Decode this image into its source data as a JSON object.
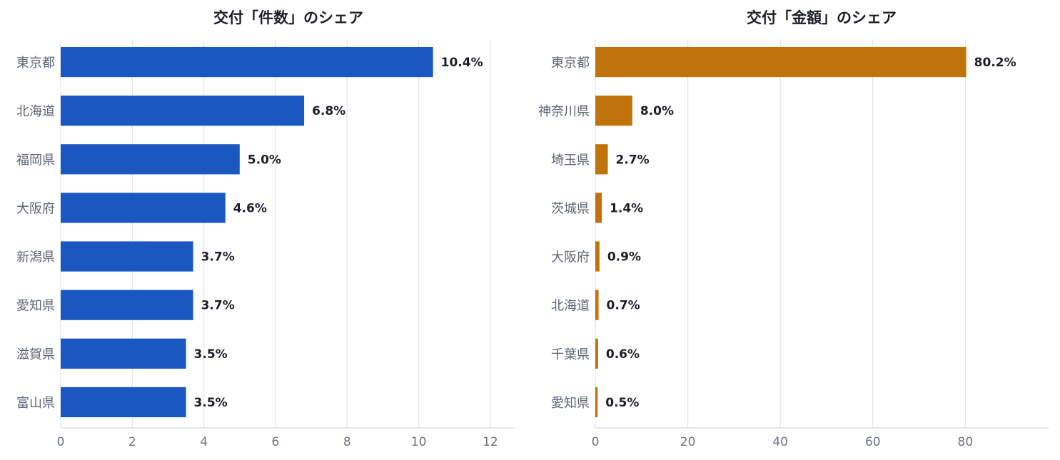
{
  "chart_data": [
    {
      "type": "bar",
      "orientation": "horizontal",
      "title": "交付「件数」のシェア",
      "categories": [
        "東京都",
        "北海道",
        "福岡県",
        "大阪府",
        "新潟県",
        "愛知県",
        "滋賀県",
        "富山県"
      ],
      "values": [
        10.4,
        6.8,
        5.0,
        4.6,
        3.7,
        3.7,
        3.5,
        3.5
      ],
      "value_labels": [
        "10.4%",
        "6.8%",
        "5.0%",
        "4.6%",
        "3.7%",
        "3.7%",
        "3.5%",
        "3.5%"
      ],
      "xlim": [
        0,
        12.7
      ],
      "xticks": [
        0,
        2,
        4,
        6,
        8,
        10,
        12
      ],
      "xlabel": "",
      "ylabel": "",
      "grid": true,
      "legend": "none",
      "color": "#1a57c0"
    },
    {
      "type": "bar",
      "orientation": "horizontal",
      "title": "交付「金額」のシェア",
      "categories": [
        "東京都",
        "神奈川県",
        "埼玉県",
        "茨城県",
        "大阪府",
        "北海道",
        "千葉県",
        "愛知県"
      ],
      "values": [
        80.2,
        8.0,
        2.7,
        1.4,
        0.9,
        0.7,
        0.6,
        0.5
      ],
      "value_labels": [
        "80.2%",
        "8.0%",
        "2.7%",
        "1.4%",
        "0.9%",
        "0.7%",
        "0.6%",
        "0.5%"
      ],
      "xlim": [
        0,
        98
      ],
      "xticks": [
        0,
        20,
        40,
        60,
        80
      ],
      "xlabel": "",
      "ylabel": "",
      "grid": true,
      "legend": "none",
      "color": "#c0730a"
    }
  ]
}
